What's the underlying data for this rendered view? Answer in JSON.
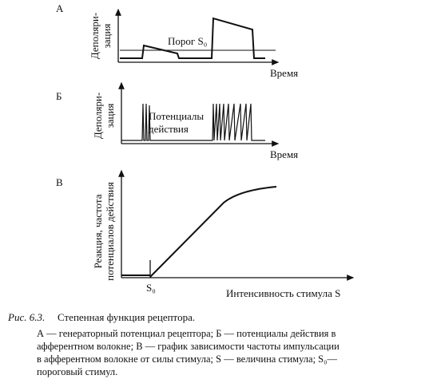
{
  "panel_a": {
    "letter": "А",
    "y_label": [
      "Деполяри-",
      "зация"
    ],
    "threshold_label": "Порог S₀",
    "x_label": "Время"
  },
  "panel_b": {
    "letter": "Б",
    "y_label": [
      "Деполяри-",
      "зация"
    ],
    "annotation": [
      "Потенциалы",
      "действия"
    ],
    "x_label": "Время"
  },
  "panel_c": {
    "letter": "В",
    "y_label": [
      "Реакция, частота",
      "потенциалов действия"
    ],
    "threshold_tick": "S₀",
    "x_label": "Интенсивность стимула S"
  },
  "caption": {
    "number": "Рис. 6.3.",
    "title": "Степенная функция рецептора.",
    "lines": [
      "А — генераторный потенциал рецептора; Б — потенциалы действия в",
      "афферентном волокне; В — график зависимости частоты импульсации",
      "в афферентном волокне от силы стимула; S — величина стимула; S₀—",
      "пороговый стимул."
    ]
  }
}
